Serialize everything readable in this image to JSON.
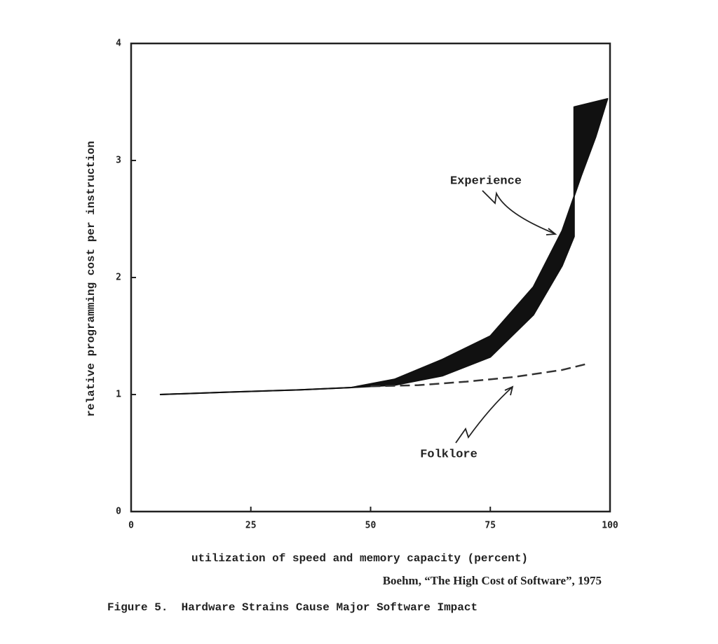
{
  "chart_data": {
    "type": "line",
    "xlim": [
      0,
      100
    ],
    "ylim": [
      0,
      4
    ],
    "xticks": [
      0,
      25,
      50,
      75,
      100
    ],
    "yticks": [
      0,
      1,
      2,
      3,
      4
    ],
    "x_label": "utilization of speed and memory capacity (percent)",
    "y_label": "relative programming cost per instruction",
    "source": "Boehm, “The High Cost of Software”, 1975",
    "caption": "Figure 5.  Hardware Strains Cause Major Software Impact",
    "series": [
      {
        "name": "Experience",
        "color": "#111111",
        "x_upper": [
          6,
          20,
          35,
          46,
          55,
          65,
          75,
          84,
          90,
          94,
          97,
          99.5
        ],
        "upper": [
          1,
          1.02,
          1.04,
          1.06,
          1.13,
          1.3,
          1.5,
          1.92,
          2.4,
          2.87,
          3.2,
          3.53
        ],
        "x_lower": [
          6,
          20,
          35,
          46,
          55,
          65,
          75,
          84,
          90,
          92.5,
          92.5
        ],
        "lower": [
          1,
          1.02,
          1.04,
          1.06,
          1.08,
          1.16,
          1.32,
          1.68,
          2.1,
          2.35,
          3.46
        ]
      },
      {
        "name": "Folklore",
        "color": "#333333",
        "dashed": true,
        "x": [
          50,
          60,
          70,
          80,
          90,
          95
        ],
        "values": [
          1.07,
          1.08,
          1.11,
          1.15,
          1.21,
          1.26
        ]
      }
    ]
  }
}
